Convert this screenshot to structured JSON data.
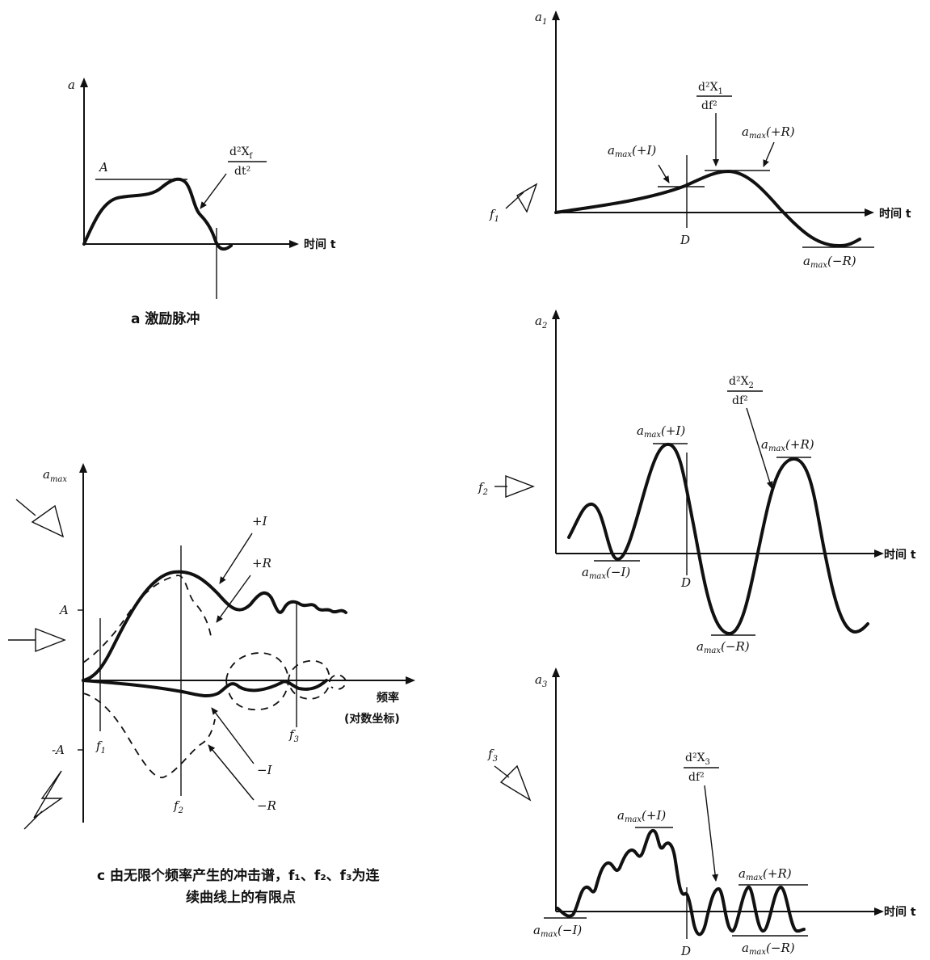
{
  "panel_a": {
    "y_label": "a",
    "level_label": "A",
    "time_label": "时间 t",
    "annot_num": "d²X",
    "annot_num_sub": "f",
    "annot_den": "dt²",
    "caption": "a 激励脉冲"
  },
  "panel_b1": {
    "y_label": "a",
    "y_sub": "1",
    "freq_label": "f",
    "freq_sub": "1",
    "time_label": "时间 t",
    "d_label": "D",
    "annot_num": "d²X",
    "annot_num_sub": "1",
    "annot_den": "df²",
    "amax_pos_i": "+I",
    "amax_pos_r": "+R",
    "amax_neg_r": "−R",
    "amax": "a",
    "amax_sub": "max"
  },
  "panel_b2": {
    "y_label": "a",
    "y_sub": "2",
    "freq_label": "f",
    "freq_sub": "2",
    "time_label": "时间 t",
    "d_label": "D",
    "annot_num": "d²X",
    "annot_num_sub": "2",
    "annot_den": "df²",
    "amax_pos_i": "+I",
    "amax_pos_r": "+R",
    "amax_neg_i": "−I",
    "amax_neg_r": "−R"
  },
  "panel_b3": {
    "y_label": "a",
    "y_sub": "3",
    "freq_label": "f",
    "freq_sub": "3",
    "time_label": "时间 t",
    "d_label": "D",
    "annot_num": "d²X",
    "annot_num_sub": "3",
    "annot_den": "df²",
    "amax_pos_i": "+I",
    "amax_pos_r": "+R",
    "amax_neg_i": "−I",
    "amax_neg_r": "−R"
  },
  "panel_c": {
    "y_label": "a",
    "y_sub": "max",
    "pos_a": "A",
    "neg_a": "-A",
    "x_label": "频率",
    "x_label_2": "(对数坐标)",
    "f1": "f",
    "f1_sub": "1",
    "f2": "f",
    "f2_sub": "2",
    "f3": "f",
    "f3_sub": "3",
    "curve_pos_i": "+I",
    "curve_pos_r": "+R",
    "curve_neg_i": "−I",
    "curve_neg_r": "−R",
    "caption_1": "c 由无限个频率产生的冲击谱，f₁、f₂、f₃为连",
    "caption_2": "续曲线上的有限点"
  }
}
